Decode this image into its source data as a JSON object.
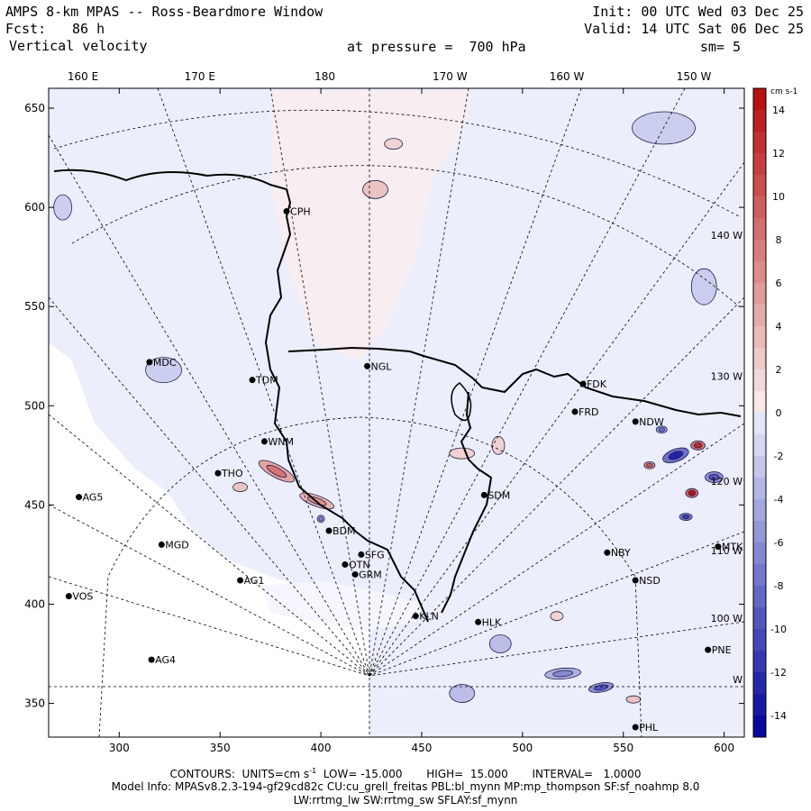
{
  "header": {
    "title": "AMPS 8-km MPAS -- Ross-Beardmore Window",
    "fcst_label": "Fcst:",
    "fcst_value": "86 h",
    "field": "Vertical velocity",
    "init": "Init: 00 UTC Wed 03 Dec 25",
    "valid": "Valid: 14 UTC Sat 06 Dec 25",
    "pressure": "at pressure =  700 hPa",
    "smooth": "sm= 5"
  },
  "chart_data": {
    "type": "heatmap",
    "title": "Vertical velocity at 700 hPa",
    "xlim": [
      265,
      610
    ],
    "ylim": [
      333,
      660
    ],
    "x_ticks": [
      300,
      350,
      400,
      450,
      500,
      550,
      600
    ],
    "y_ticks": [
      350,
      400,
      450,
      500,
      550,
      600,
      650
    ],
    "lon_labels_top": [
      {
        "label": "160 E",
        "x": 282
      },
      {
        "label": "170 E",
        "x": 340
      },
      {
        "label": "180",
        "x": 402
      },
      {
        "label": "170 W",
        "x": 464
      },
      {
        "label": "160 W",
        "x": 522
      },
      {
        "label": "150 W",
        "x": 585
      }
    ],
    "lon_labels_right": [
      {
        "label": "140 W",
        "y": 586
      },
      {
        "label": "130 W",
        "y": 515
      },
      {
        "label": "120 W",
        "y": 462
      },
      {
        "label": "110 W",
        "y": 427
      },
      {
        "label": "100 W",
        "y": 393
      },
      {
        "label": "W",
        "y": 362
      }
    ],
    "colorbar": {
      "units": "cm s-1",
      "min": -15,
      "max": 15,
      "tick_values": [
        14,
        12,
        10,
        8,
        6,
        4,
        2,
        0,
        -2,
        -4,
        -6,
        -8,
        -10,
        -12,
        -14
      ]
    },
    "stations": [
      {
        "name": "CPH",
        "x": 383,
        "y": 598
      },
      {
        "name": "MDC",
        "x": 315,
        "y": 522
      },
      {
        "name": "NGL",
        "x": 423,
        "y": 520
      },
      {
        "name": "TDM",
        "x": 366,
        "y": 513
      },
      {
        "name": "FDK",
        "x": 530,
        "y": 511
      },
      {
        "name": "FRD",
        "x": 526,
        "y": 497
      },
      {
        "name": "NDW",
        "x": 556,
        "y": 492
      },
      {
        "name": "WNM",
        "x": 372,
        "y": 482
      },
      {
        "name": "THO",
        "x": 349,
        "y": 466
      },
      {
        "name": "SDM",
        "x": 481,
        "y": 455
      },
      {
        "name": "AG5",
        "x": 280,
        "y": 454
      },
      {
        "name": "BDM",
        "x": 404,
        "y": 437
      },
      {
        "name": "MGD",
        "x": 321,
        "y": 430
      },
      {
        "name": "NBY",
        "x": 542,
        "y": 426
      },
      {
        "name": "MTK",
        "x": 597,
        "y": 429
      },
      {
        "name": "SFG",
        "x": 420,
        "y": 425
      },
      {
        "name": "OTN",
        "x": 412,
        "y": 420
      },
      {
        "name": "GRM",
        "x": 417,
        "y": 415
      },
      {
        "name": "AG1",
        "x": 360,
        "y": 412
      },
      {
        "name": "NSD",
        "x": 556,
        "y": 412
      },
      {
        "name": "VOS",
        "x": 275,
        "y": 404
      },
      {
        "name": "KLN",
        "x": 447,
        "y": 394
      },
      {
        "name": "HLK",
        "x": 478,
        "y": 391
      },
      {
        "name": "PNE",
        "x": 592,
        "y": 377
      },
      {
        "name": "AG4",
        "x": 316,
        "y": 372
      },
      {
        "name": "PHL",
        "x": 556,
        "y": 338
      }
    ],
    "features": [
      {
        "type": "updraft",
        "x": 378,
        "y": 467,
        "value": 5,
        "rx": 22,
        "ry": 7,
        "rot": 28
      },
      {
        "type": "updraft",
        "x": 398,
        "y": 452,
        "value": 4,
        "rx": 20,
        "ry": 6,
        "rot": 20
      },
      {
        "type": "updraft",
        "x": 360,
        "y": 459,
        "value": 3,
        "rx": 8,
        "ry": 5,
        "rot": 0
      },
      {
        "type": "updraft",
        "x": 427,
        "y": 609,
        "value": 3,
        "rx": 14,
        "ry": 10,
        "rot": 0
      },
      {
        "type": "updraft",
        "x": 436,
        "y": 632,
        "value": 2,
        "rx": 10,
        "ry": 6,
        "rot": 0
      },
      {
        "type": "updraft",
        "x": 470,
        "y": 476,
        "value": 2,
        "rx": 14,
        "ry": 6,
        "rot": 0
      },
      {
        "type": "updraft",
        "x": 488,
        "y": 480,
        "value": 2,
        "rx": 7,
        "ry": 10,
        "rot": 0
      },
      {
        "type": "updraft",
        "x": 517,
        "y": 394,
        "value": 2,
        "rx": 7,
        "ry": 5,
        "rot": 0
      },
      {
        "type": "updraft",
        "x": 587,
        "y": 480,
        "value": 8,
        "rx": 8,
        "ry": 5,
        "rot": 0
      },
      {
        "type": "updraft",
        "x": 584,
        "y": 456,
        "value": 9,
        "rx": 7,
        "ry": 5,
        "rot": 0
      },
      {
        "type": "updraft",
        "x": 563,
        "y": 470,
        "value": 6,
        "rx": 6,
        "ry": 4,
        "rot": 0
      },
      {
        "type": "updraft",
        "x": 555,
        "y": 352,
        "value": 3,
        "rx": 8,
        "ry": 4,
        "rot": 0
      },
      {
        "type": "downdraft",
        "x": 576,
        "y": 475,
        "value": -8,
        "rx": 15,
        "ry": 7,
        "rot": -20
      },
      {
        "type": "downdraft",
        "x": 595,
        "y": 464,
        "value": -6,
        "rx": 10,
        "ry": 6,
        "rot": 0
      },
      {
        "type": "downdraft",
        "x": 581,
        "y": 444,
        "value": -7,
        "rx": 7,
        "ry": 4,
        "rot": 0
      },
      {
        "type": "downdraft",
        "x": 569,
        "y": 488,
        "value": -5,
        "rx": 6,
        "ry": 4,
        "rot": 0
      },
      {
        "type": "downdraft",
        "x": 539,
        "y": 358,
        "value": -6,
        "rx": 14,
        "ry": 5,
        "rot": -10
      },
      {
        "type": "downdraft",
        "x": 520,
        "y": 365,
        "value": -4,
        "rx": 20,
        "ry": 6,
        "rot": -5
      },
      {
        "type": "downdraft",
        "x": 489,
        "y": 380,
        "value": -3,
        "rx": 12,
        "ry": 10,
        "rot": 0
      },
      {
        "type": "downdraft",
        "x": 470,
        "y": 355,
        "value": -3,
        "rx": 14,
        "ry": 10,
        "rot": 0
      },
      {
        "type": "downdraft",
        "x": 322,
        "y": 518,
        "value": -2,
        "rx": 20,
        "ry": 14,
        "rot": 0
      },
      {
        "type": "downdraft",
        "x": 272,
        "y": 600,
        "value": -2,
        "rx": 10,
        "ry": 14,
        "rot": 0
      },
      {
        "type": "downdraft",
        "x": 570,
        "y": 640,
        "value": -2,
        "rx": 35,
        "ry": 18,
        "rot": 0
      },
      {
        "type": "downdraft",
        "x": 590,
        "y": 560,
        "value": -2,
        "rx": 14,
        "ry": 20,
        "rot": 0
      },
      {
        "type": "downdraft",
        "x": 400,
        "y": 443,
        "value": -4,
        "rx": 4,
        "ry": 4,
        "rot": 0
      }
    ]
  },
  "footer": {
    "contours": "CONTOURS:  UNITS=cm s",
    "units_exp": "-1",
    "contours_rest": "  LOW= -15.000       HIGH=  15.000       INTERVAL=   1.0000",
    "model_info": "Model Info: MPASv8.2.3-194-gf29cd82c CU:cu_grell_freitas PBL:bl_mynn MP:mp_thompson SF:sf_noahmp 8.0",
    "model_info2": "LW:rrtmg_lw SW:rrtmg_sw SFLAY:sf_mynn"
  }
}
